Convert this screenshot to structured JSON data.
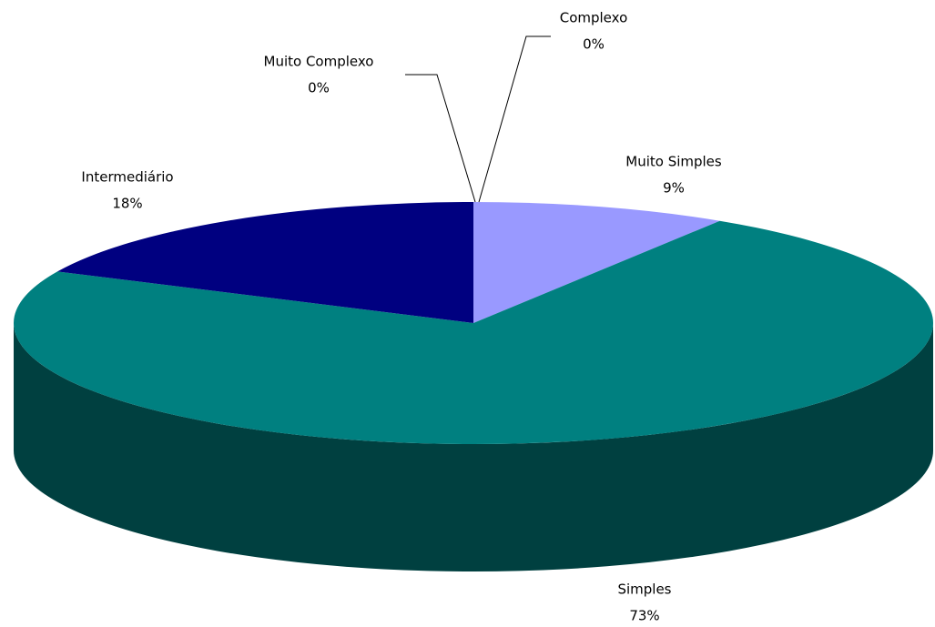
{
  "chart_data": {
    "type": "pie3d",
    "categories": [
      "Muito Simples",
      "Simples",
      "Intermediário",
      "Muito Complexo",
      "Complexo"
    ],
    "values": [
      9,
      73,
      18,
      0,
      0
    ],
    "value_labels": [
      "9%",
      "73%",
      "18%",
      "0%",
      "0%"
    ],
    "colors": [
      "#9999ff",
      "#008080",
      "#000080",
      null,
      null
    ]
  }
}
